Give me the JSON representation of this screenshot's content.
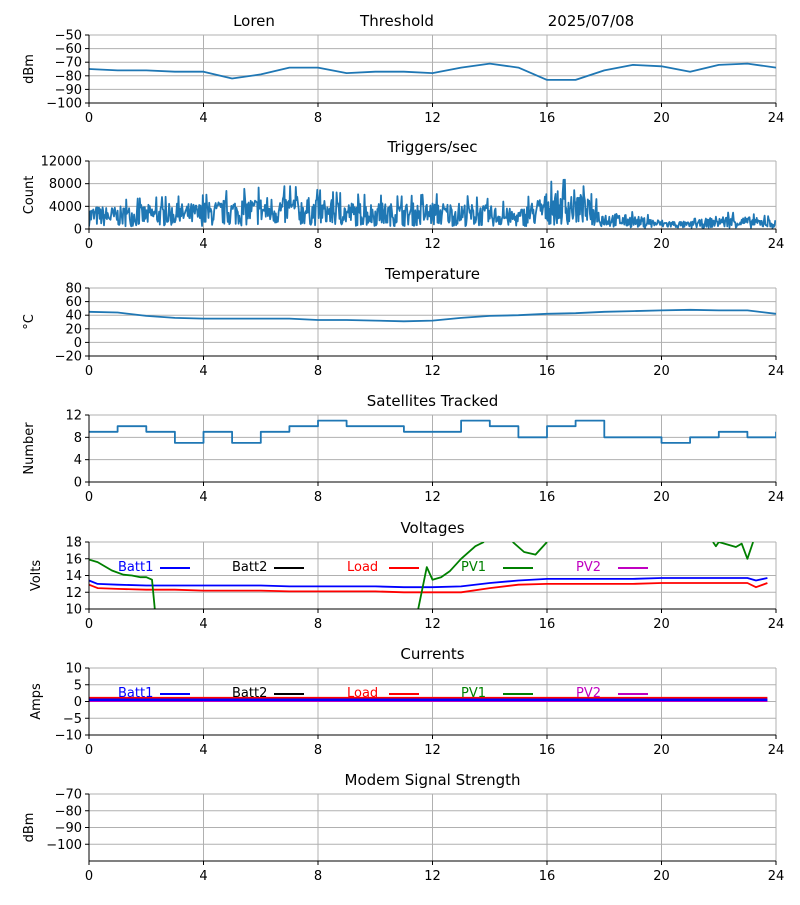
{
  "header": {
    "station": "Loren",
    "mode": "Threshold",
    "date": "2025/07/08"
  },
  "colors": {
    "series_default": "#1f77b4",
    "grid": "#b0b0b0",
    "batt1": "#0000ff",
    "batt2": "#000000",
    "load": "#ff0000",
    "pv1": "#008000",
    "pv2": "#c000c0"
  },
  "x_axis": {
    "range": [
      0,
      24
    ],
    "ticks": [
      0,
      4,
      8,
      12,
      16,
      20,
      24
    ]
  },
  "legend_labels": [
    "Batt1",
    "Batt2",
    "Load",
    "PV1",
    "PV2"
  ],
  "chart_data": [
    {
      "id": "signal",
      "type": "line",
      "title": "",
      "ylabel": "dBm",
      "ylim": [
        -100,
        -50
      ],
      "yticks": [
        -100,
        -90,
        -80,
        -70,
        -60,
        -50
      ],
      "grid": true,
      "series": [
        {
          "color": "#1f77b4",
          "x": [
            0,
            1,
            2,
            3,
            4,
            5,
            6,
            7,
            8,
            9,
            10,
            11,
            12,
            13,
            14,
            15,
            16,
            17,
            18,
            19,
            20,
            21,
            22,
            23,
            24
          ],
          "y": [
            -75,
            -76,
            -76,
            -77,
            -77,
            -82,
            -79,
            -74,
            -74,
            -78,
            -77,
            -77,
            -78,
            -74,
            -71,
            -74,
            -83,
            -83,
            -76,
            -72,
            -73,
            -77,
            -72,
            -71,
            -74
          ]
        }
      ]
    },
    {
      "id": "triggers",
      "type": "line",
      "title": "Triggers/sec",
      "ylabel": "Count",
      "ylim": [
        0,
        12000
      ],
      "yticks": [
        0,
        4000,
        8000,
        12000
      ],
      "grid": true,
      "noisy": true,
      "series": [
        {
          "color": "#1f77b4",
          "x": [
            0,
            1,
            2,
            3,
            4,
            5,
            6,
            7,
            8,
            9,
            10,
            11,
            12,
            13,
            14,
            15,
            16,
            17,
            18,
            19,
            20,
            21,
            22,
            23,
            24
          ],
          "y": [
            2300,
            2200,
            2400,
            2500,
            2600,
            3000,
            3200,
            3300,
            3000,
            2700,
            2600,
            2500,
            2700,
            2600,
            2300,
            1900,
            3600,
            3900,
            1700,
            1300,
            900,
            700,
            1300,
            1200,
            900
          ]
        }
      ]
    },
    {
      "id": "temperature",
      "type": "line",
      "title": "Temperature",
      "ylabel": "°C",
      "ylim": [
        -20,
        80
      ],
      "yticks": [
        -20,
        0,
        20,
        40,
        60,
        80
      ],
      "grid": true,
      "series": [
        {
          "color": "#1f77b4",
          "x": [
            0,
            1,
            2,
            3,
            4,
            5,
            6,
            7,
            8,
            9,
            10,
            11,
            12,
            13,
            14,
            15,
            16,
            17,
            18,
            19,
            20,
            21,
            22,
            23,
            24
          ],
          "y": [
            45,
            44,
            39,
            36,
            35,
            35,
            35,
            35,
            33,
            33,
            32,
            31,
            32,
            36,
            39,
            40,
            42,
            43,
            45,
            46,
            47,
            48,
            47,
            47,
            42
          ]
        }
      ]
    },
    {
      "id": "satellites",
      "type": "line",
      "title": "Satellites Tracked",
      "ylabel": "Number",
      "ylim": [
        0,
        12
      ],
      "yticks": [
        0,
        4,
        8,
        12
      ],
      "grid": true,
      "step": true,
      "series": [
        {
          "color": "#1f77b4",
          "x": [
            0,
            1,
            2,
            3,
            4,
            5,
            6,
            7,
            8,
            9,
            10,
            11,
            12,
            13,
            14,
            15,
            16,
            17,
            18,
            19,
            20,
            21,
            22,
            23,
            24
          ],
          "y": [
            9,
            10,
            9,
            7,
            9,
            7,
            9,
            10,
            11,
            10,
            10,
            9,
            9,
            11,
            10,
            8,
            10,
            11,
            8,
            8,
            7,
            8,
            9,
            8,
            9
          ]
        }
      ]
    },
    {
      "id": "voltages",
      "type": "line",
      "title": "Voltages",
      "ylabel": "Volts",
      "ylim": [
        10,
        18
      ],
      "yticks": [
        10,
        12,
        14,
        16,
        18
      ],
      "grid": true,
      "legend": "top",
      "series": [
        {
          "name": "Batt1",
          "color": "#0000ff",
          "x": [
            0,
            0.3,
            1,
            2,
            3,
            4,
            5,
            6,
            7,
            8,
            9,
            10,
            11,
            12,
            13,
            14,
            15,
            16,
            17,
            18,
            19,
            20,
            21,
            22,
            23,
            23.3,
            23.7
          ],
          "y": [
            13.4,
            13.0,
            12.9,
            12.8,
            12.8,
            12.8,
            12.8,
            12.8,
            12.7,
            12.7,
            12.7,
            12.7,
            12.6,
            12.6,
            12.7,
            13.1,
            13.4,
            13.6,
            13.6,
            13.6,
            13.6,
            13.7,
            13.7,
            13.7,
            13.7,
            13.4,
            13.7
          ]
        },
        {
          "name": "Load",
          "color": "#ff0000",
          "x": [
            0,
            0.3,
            1,
            2,
            3,
            4,
            5,
            6,
            7,
            8,
            9,
            10,
            11,
            12,
            13,
            14,
            15,
            16,
            17,
            18,
            19,
            20,
            21,
            22,
            23,
            23.3,
            23.7
          ],
          "y": [
            12.9,
            12.5,
            12.4,
            12.3,
            12.3,
            12.2,
            12.2,
            12.2,
            12.1,
            12.1,
            12.1,
            12.1,
            12.0,
            12.0,
            12.0,
            12.5,
            12.9,
            13.0,
            13.0,
            13.0,
            13.0,
            13.1,
            13.1,
            13.1,
            13.1,
            12.6,
            13.1
          ]
        },
        {
          "name": "PV1",
          "color": "#008000",
          "x": [
            0,
            0.3,
            0.8,
            1.2,
            1.5,
            1.8,
            2.0,
            2.2,
            2.3
          ],
          "y": [
            15.9,
            15.6,
            14.6,
            14.1,
            14.0,
            13.8,
            13.8,
            13.5,
            10.0
          ]
        },
        {
          "name": "PV1",
          "color": "#008000",
          "x": [
            11.5,
            11.8,
            12.0,
            12.3,
            12.6,
            13.0,
            13.5,
            13.8
          ],
          "y": [
            10.0,
            15.0,
            13.5,
            13.8,
            14.5,
            16.0,
            17.5,
            18.0
          ]
        },
        {
          "name": "PV1",
          "color": "#008000",
          "x": [
            14.8,
            15.2,
            15.6,
            16.0
          ],
          "y": [
            18.0,
            16.8,
            16.5,
            18.0
          ]
        },
        {
          "name": "PV1",
          "color": "#008000",
          "x": [
            21.8,
            21.9,
            22.0,
            22.6,
            22.8,
            23.0,
            23.2
          ],
          "y": [
            18.0,
            17.5,
            18.0,
            17.4,
            17.8,
            16.0,
            18.0
          ]
        }
      ]
    },
    {
      "id": "currents",
      "type": "line",
      "title": "Currents",
      "ylabel": "Amps",
      "ylim": [
        -10,
        10
      ],
      "yticks": [
        -10,
        -5,
        0,
        5,
        10
      ],
      "grid": true,
      "legend": "top",
      "series": [
        {
          "name": "Load",
          "color": "#ff0000",
          "x": [
            0,
            23.7
          ],
          "y": [
            1.0,
            1.0
          ]
        },
        {
          "name": "PV2",
          "color": "#c000c0",
          "x": [
            0,
            23.7
          ],
          "y": [
            0.2,
            0.2
          ]
        },
        {
          "name": "Batt1",
          "color": "#0000ff",
          "x": [
            0,
            23.7
          ],
          "y": [
            0.5,
            0.5
          ]
        }
      ]
    },
    {
      "id": "modem",
      "type": "line",
      "title": "Modem Signal Strength",
      "ylabel": "dBm",
      "ylim": [
        -110,
        -70
      ],
      "yticks": [
        -100,
        -90,
        -80,
        -70
      ],
      "grid": true,
      "series": []
    }
  ]
}
